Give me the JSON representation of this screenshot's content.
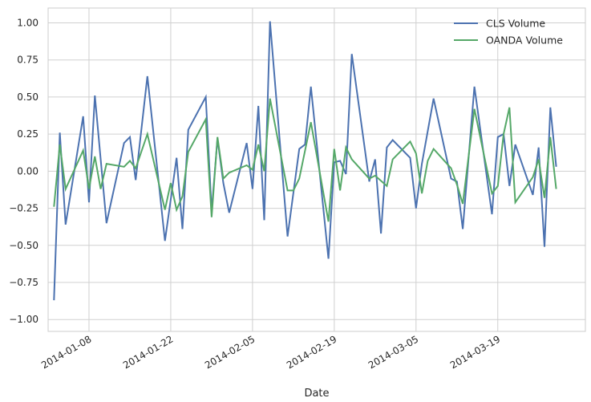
{
  "chart_data": {
    "type": "line",
    "xlabel": "Date",
    "ylabel": "",
    "ylim": [
      -1.08,
      1.1
    ],
    "xlim": [
      "2014-01-01",
      "2014-04-03"
    ],
    "yticks": [
      -1.0,
      -0.75,
      -0.5,
      -0.25,
      0.0,
      0.25,
      0.5,
      0.75,
      1.0
    ],
    "ytick_labels": [
      "−1.00",
      "−0.75",
      "−0.50",
      "−0.25",
      "0.00",
      "0.25",
      "0.50",
      "0.75",
      "1.00"
    ],
    "xticks": [
      "2014-01-08",
      "2014-01-22",
      "2014-02-05",
      "2014-02-19",
      "2014-03-05",
      "2014-03-19"
    ],
    "grid": true,
    "legend_position": "top-right",
    "series": [
      {
        "name": "CLS Volume",
        "color": "#4c72b0",
        "points": [
          [
            "2014-01-02",
            -0.87
          ],
          [
            "2014-01-03",
            0.26
          ],
          [
            "2014-01-04",
            -0.36
          ],
          [
            "2014-01-07",
            0.37
          ],
          [
            "2014-01-08",
            -0.21
          ],
          [
            "2014-01-09",
            0.51
          ],
          [
            "2014-01-11",
            -0.35
          ],
          [
            "2014-01-14",
            0.19
          ],
          [
            "2014-01-15",
            0.23
          ],
          [
            "2014-01-16",
            -0.06
          ],
          [
            "2014-01-18",
            0.64
          ],
          [
            "2014-01-21",
            -0.47
          ],
          [
            "2014-01-23",
            0.09
          ],
          [
            "2014-01-24",
            -0.39
          ],
          [
            "2014-01-25",
            0.28
          ],
          [
            "2014-01-28",
            0.5
          ],
          [
            "2014-01-29",
            -0.27
          ],
          [
            "2014-01-30",
            0.22
          ],
          [
            "2014-01-31",
            -0.08
          ],
          [
            "2014-02-01",
            -0.28
          ],
          [
            "2014-02-04",
            0.19
          ],
          [
            "2014-02-05",
            -0.12
          ],
          [
            "2014-02-06",
            0.44
          ],
          [
            "2014-02-07",
            -0.33
          ],
          [
            "2014-02-08",
            1.01
          ],
          [
            "2014-02-11",
            -0.44
          ],
          [
            "2014-02-13",
            0.15
          ],
          [
            "2014-02-14",
            0.18
          ],
          [
            "2014-02-15",
            0.57
          ],
          [
            "2014-02-18",
            -0.59
          ],
          [
            "2014-02-19",
            0.06
          ],
          [
            "2014-02-20",
            0.07
          ],
          [
            "2014-02-21",
            -0.02
          ],
          [
            "2014-02-22",
            0.79
          ],
          [
            "2014-02-25",
            -0.07
          ],
          [
            "2014-02-26",
            0.08
          ],
          [
            "2014-02-27",
            -0.42
          ],
          [
            "2014-02-28",
            0.16
          ],
          [
            "2014-03-01",
            0.21
          ],
          [
            "2014-03-04",
            0.09
          ],
          [
            "2014-03-05",
            -0.25
          ],
          [
            "2014-03-06",
            0.05
          ],
          [
            "2014-03-08",
            0.49
          ],
          [
            "2014-03-11",
            -0.05
          ],
          [
            "2014-03-12",
            -0.07
          ],
          [
            "2014-03-13",
            -0.39
          ],
          [
            "2014-03-15",
            0.57
          ],
          [
            "2014-03-18",
            -0.29
          ],
          [
            "2014-03-19",
            0.23
          ],
          [
            "2014-03-20",
            0.25
          ],
          [
            "2014-03-21",
            -0.1
          ],
          [
            "2014-03-22",
            0.18
          ],
          [
            "2014-03-25",
            -0.16
          ],
          [
            "2014-03-26",
            0.16
          ],
          [
            "2014-03-27",
            -0.51
          ],
          [
            "2014-03-28",
            0.43
          ],
          [
            "2014-03-29",
            0.03
          ]
        ]
      },
      {
        "name": "OANDA Volume",
        "color": "#55a868",
        "points": [
          [
            "2014-01-02",
            -0.24
          ],
          [
            "2014-01-03",
            0.18
          ],
          [
            "2014-01-04",
            -0.12
          ],
          [
            "2014-01-07",
            0.14
          ],
          [
            "2014-01-08",
            -0.12
          ],
          [
            "2014-01-09",
            0.1
          ],
          [
            "2014-01-10",
            -0.12
          ],
          [
            "2014-01-11",
            0.05
          ],
          [
            "2014-01-14",
            0.03
          ],
          [
            "2014-01-15",
            0.07
          ],
          [
            "2014-01-16",
            0.02
          ],
          [
            "2014-01-18",
            0.25
          ],
          [
            "2014-01-21",
            -0.26
          ],
          [
            "2014-01-22",
            -0.08
          ],
          [
            "2014-01-23",
            -0.26
          ],
          [
            "2014-01-24",
            -0.17
          ],
          [
            "2014-01-25",
            0.13
          ],
          [
            "2014-01-28",
            0.35
          ],
          [
            "2014-01-29",
            -0.31
          ],
          [
            "2014-01-30",
            0.23
          ],
          [
            "2014-01-31",
            -0.05
          ],
          [
            "2014-02-01",
            -0.01
          ],
          [
            "2014-02-04",
            0.04
          ],
          [
            "2014-02-05",
            0.01
          ],
          [
            "2014-02-06",
            0.18
          ],
          [
            "2014-02-07",
            0.0
          ],
          [
            "2014-02-08",
            0.49
          ],
          [
            "2014-02-11",
            -0.13
          ],
          [
            "2014-02-12",
            -0.13
          ],
          [
            "2014-02-13",
            -0.05
          ],
          [
            "2014-02-15",
            0.33
          ],
          [
            "2014-02-18",
            -0.34
          ],
          [
            "2014-02-19",
            0.15
          ],
          [
            "2014-02-20",
            -0.13
          ],
          [
            "2014-02-21",
            0.16
          ],
          [
            "2014-02-22",
            0.08
          ],
          [
            "2014-02-25",
            -0.05
          ],
          [
            "2014-02-26",
            -0.03
          ],
          [
            "2014-02-28",
            -0.1
          ],
          [
            "2014-03-01",
            0.08
          ],
          [
            "2014-03-04",
            0.2
          ],
          [
            "2014-03-05",
            0.12
          ],
          [
            "2014-03-06",
            -0.15
          ],
          [
            "2014-03-07",
            0.07
          ],
          [
            "2014-03-08",
            0.15
          ],
          [
            "2014-03-11",
            0.02
          ],
          [
            "2014-03-12",
            -0.09
          ],
          [
            "2014-03-13",
            -0.22
          ],
          [
            "2014-03-15",
            0.42
          ],
          [
            "2014-03-18",
            -0.15
          ],
          [
            "2014-03-19",
            -0.1
          ],
          [
            "2014-03-20",
            0.25
          ],
          [
            "2014-03-21",
            0.43
          ],
          [
            "2014-03-22",
            -0.21
          ],
          [
            "2014-03-25",
            -0.04
          ],
          [
            "2014-03-26",
            0.08
          ],
          [
            "2014-03-27",
            -0.18
          ],
          [
            "2014-03-28",
            0.23
          ],
          [
            "2014-03-29",
            -0.12
          ]
        ]
      }
    ]
  }
}
